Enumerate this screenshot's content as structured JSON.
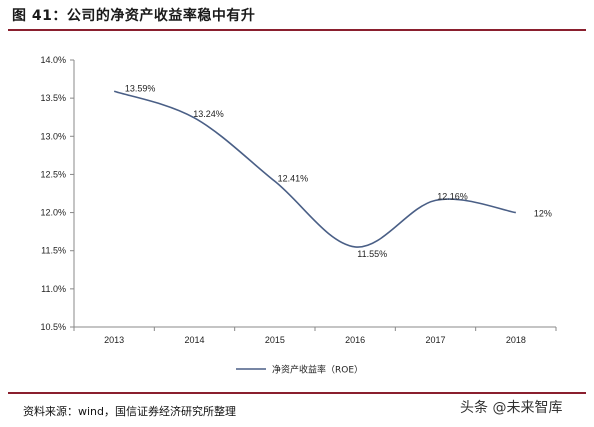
{
  "header": {
    "title": "图 41：公司的净资产收益率稳中有升"
  },
  "footer": {
    "source": "资料来源：wind，国信证券经济研究所整理",
    "watermark": "头条 @未来智库"
  },
  "chart_data": {
    "type": "line",
    "title": "",
    "xlabel": "",
    "ylabel": "",
    "categories": [
      "2013",
      "2014",
      "2015",
      "2016",
      "2017",
      "2018"
    ],
    "series": [
      {
        "name": "净资产收益率（ROE）",
        "values": [
          13.59,
          13.24,
          12.41,
          11.55,
          12.16,
          12.0
        ],
        "labels": [
          "13.59%",
          "13.24%",
          "12.41%",
          "11.55%",
          "12.16%",
          "12%"
        ],
        "color": "#4a5f86"
      }
    ],
    "ylim": [
      10.5,
      14.0
    ],
    "yticks": [
      "10.5%",
      "11.0%",
      "11.5%",
      "12.0%",
      "12.5%",
      "13.0%",
      "13.5%",
      "14.0%"
    ],
    "ytick_values": [
      10.5,
      11.0,
      11.5,
      12.0,
      12.5,
      13.0,
      13.5,
      14.0
    ],
    "grid": false,
    "legend": "bottom",
    "smooth": true
  }
}
